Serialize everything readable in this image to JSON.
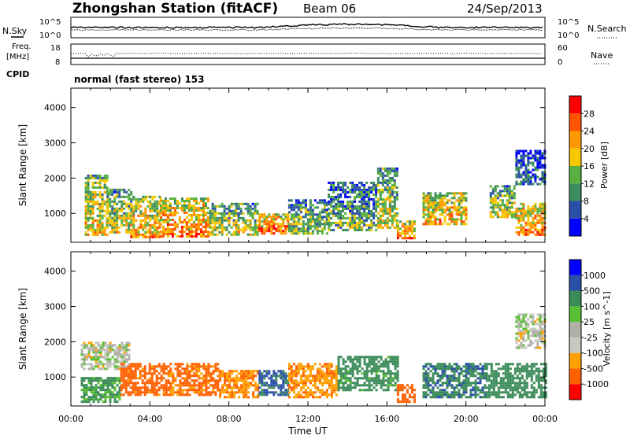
{
  "header": {
    "title": "Zhongshan Station (fitACF)",
    "beam": "Beam 06",
    "date": "24/Sep/2013"
  },
  "top_panel": {
    "left_label": "N.Sky",
    "right_label": "N.Search",
    "left_ticks": [
      "10^5",
      "10^0"
    ],
    "right_ticks": [
      "10^5",
      "10^0"
    ]
  },
  "freq_panel": {
    "left_label_1": "Freq.",
    "left_label_2": "[MHz]",
    "left_ticks": [
      "18",
      "8"
    ],
    "right_label": "Nave",
    "right_ticks": [
      "60",
      "0"
    ]
  },
  "cpid": {
    "label": "CPID",
    "text": "normal (fast stereo) 153"
  },
  "colors": {
    "power": [
      "#0000ff",
      "#2a4fa8",
      "#3c8c60",
      "#58b040",
      "#f5c800",
      "#ff9900",
      "#ff5500",
      "#ff0000"
    ],
    "velocity": [
      "#ff0000",
      "#ff6000",
      "#ffa000",
      "#c8c8c0",
      "#b0b0a8",
      "#58c030",
      "#3c8c5a",
      "#2a4fa8",
      "#0000ff"
    ]
  },
  "chart_data": [
    {
      "type": "heatmap",
      "name": "power",
      "xlabel": "",
      "ylabel": "Slant Range [km]",
      "yticks": [
        1000,
        2000,
        3000,
        4000
      ],
      "ylim": [
        180,
        4550
      ],
      "xlim": [
        0,
        24
      ],
      "colorbar": {
        "label": "Power [dB]",
        "ticks": [
          "4",
          "8",
          "12",
          "16",
          "20",
          "24",
          "28"
        ],
        "range": [
          0,
          32
        ]
      },
      "regions": [
        {
          "t": [
            0.7,
            1.8
          ],
          "r": [
            400,
            2100
          ],
          "v": 20
        },
        {
          "t": [
            1.8,
            3.0
          ],
          "r": [
            450,
            1700
          ],
          "v": 18
        },
        {
          "t": [
            3.0,
            4.5
          ],
          "r": [
            350,
            1500
          ],
          "v": 22
        },
        {
          "t": [
            4.5,
            7.0
          ],
          "r": [
            350,
            1450
          ],
          "v": 24
        },
        {
          "t": [
            7.0,
            9.5
          ],
          "r": [
            400,
            1300
          ],
          "v": 18
        },
        {
          "t": [
            9.5,
            11.0
          ],
          "r": [
            400,
            1000
          ],
          "v": 26
        },
        {
          "t": [
            11.0,
            13.0
          ],
          "r": [
            400,
            1400
          ],
          "v": 16
        },
        {
          "t": [
            13.0,
            15.5
          ],
          "r": [
            500,
            1900
          ],
          "v": 14
        },
        {
          "t": [
            15.5,
            16.5
          ],
          "r": [
            600,
            2300
          ],
          "v": 18
        },
        {
          "t": [
            16.5,
            17.4
          ],
          "r": [
            300,
            800
          ],
          "v": 24
        },
        {
          "t": [
            17.8,
            20.0
          ],
          "r": [
            700,
            1600
          ],
          "v": 22
        },
        {
          "t": [
            21.2,
            22.5
          ],
          "r": [
            900,
            1800
          ],
          "v": 18
        },
        {
          "t": [
            22.5,
            24.0
          ],
          "r": [
            400,
            1300
          ],
          "v": 24
        },
        {
          "t": [
            22.5,
            24.0
          ],
          "r": [
            1800,
            2800
          ],
          "v": 10
        }
      ]
    },
    {
      "type": "heatmap",
      "name": "velocity",
      "xlabel": "Time UT",
      "ylabel": "Slant Range [km]",
      "yticks": [
        1000,
        2000,
        3000,
        4000
      ],
      "ylim": [
        180,
        4550
      ],
      "xlim": [
        0,
        24
      ],
      "xticks": [
        "00:00",
        "04:00",
        "08:00",
        "12:00",
        "16:00",
        "20:00",
        "00:00"
      ],
      "colorbar": {
        "label": "Velocity [m s^-1]",
        "ticks": [
          "-1000",
          "-500",
          "-100",
          "-25",
          "25",
          "100",
          "500",
          "1000"
        ],
        "range": [
          -1000,
          1000
        ]
      },
      "regions": [
        {
          "t": [
            0.5,
            3.0
          ],
          "r": [
            1200,
            2000
          ],
          "v": 5
        },
        {
          "t": [
            0.5,
            2.5
          ],
          "r": [
            300,
            1000
          ],
          "v": 150
        },
        {
          "t": [
            2.5,
            5.0
          ],
          "r": [
            500,
            1400
          ],
          "v": -200
        },
        {
          "t": [
            5.0,
            7.5
          ],
          "r": [
            500,
            1400
          ],
          "v": -150
        },
        {
          "t": [
            7.5,
            9.5
          ],
          "r": [
            400,
            1200
          ],
          "v": -100
        },
        {
          "t": [
            9.5,
            11.0
          ],
          "r": [
            500,
            1200
          ],
          "v": 600
        },
        {
          "t": [
            11.0,
            13.5
          ],
          "r": [
            400,
            1400
          ],
          "v": -80
        },
        {
          "t": [
            13.5,
            16.5
          ],
          "r": [
            600,
            1600
          ],
          "v": 200
        },
        {
          "t": [
            16.5,
            17.4
          ],
          "r": [
            300,
            800
          ],
          "v": -300
        },
        {
          "t": [
            17.8,
            21.0
          ],
          "r": [
            400,
            1400
          ],
          "v": 400
        },
        {
          "t": [
            21.0,
            24.0
          ],
          "r": [
            400,
            1400
          ],
          "v": 300
        },
        {
          "t": [
            22.5,
            24.0
          ],
          "r": [
            1800,
            2800
          ],
          "v": 5
        }
      ]
    }
  ]
}
